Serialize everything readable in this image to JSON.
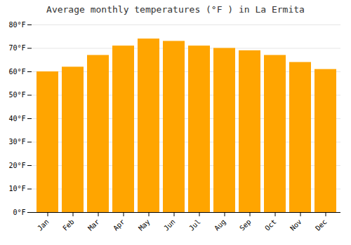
{
  "chart_data": {
    "type": "bar",
    "title": "Average monthly temperatures (°F ) in La Ermita",
    "categories": [
      "Jan",
      "Feb",
      "Mar",
      "Apr",
      "May",
      "Jun",
      "Jul",
      "Aug",
      "Sep",
      "Oct",
      "Nov",
      "Dec"
    ],
    "values": [
      60,
      62,
      67,
      71,
      74,
      73,
      71,
      70,
      69,
      67,
      64,
      61
    ],
    "color": "#FFA500",
    "ylim": [
      0,
      80
    ],
    "yticks": [
      {
        "value": 0,
        "label": "0°F"
      },
      {
        "value": 10,
        "label": "10°F"
      },
      {
        "value": 20,
        "label": "20°F"
      },
      {
        "value": 30,
        "label": "30°F"
      },
      {
        "value": 40,
        "label": "40°F"
      },
      {
        "value": 50,
        "label": "50°F"
      },
      {
        "value": 60,
        "label": "60°F"
      },
      {
        "value": 70,
        "label": "70°F"
      },
      {
        "value": 80,
        "label": "80°F"
      }
    ],
    "grid": true
  }
}
